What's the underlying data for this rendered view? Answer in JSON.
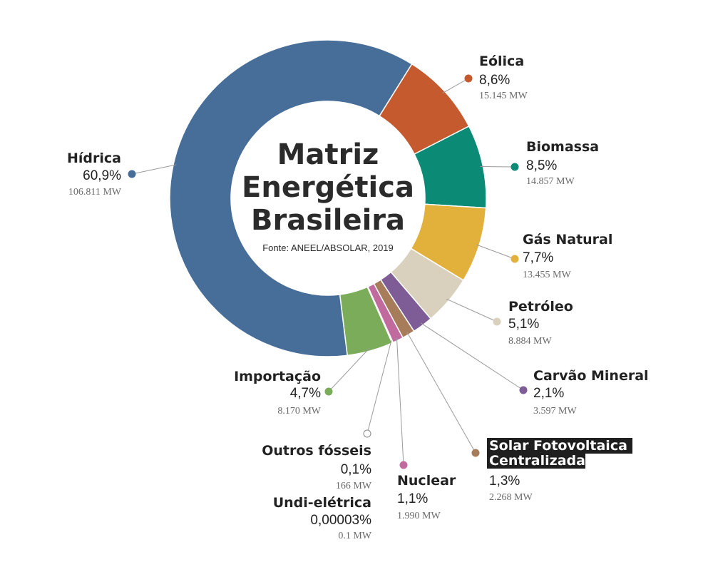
{
  "chart_data": {
    "type": "pie",
    "title": [
      "Matriz",
      "Energética",
      "Brasileira"
    ],
    "subtitle": "Fonte: ANEEL/ABSOLAR, 2019",
    "slices": [
      {
        "name": "Eólica",
        "value": 8.6,
        "percent_label": "8,6%",
        "mw_label": "15.145 MW",
        "color": "#c55a2e"
      },
      {
        "name": "Biomassa",
        "value": 8.5,
        "percent_label": "8,5%",
        "mw_label": "14.857 MW",
        "color": "#0b8a76"
      },
      {
        "name": "Gás Natural",
        "value": 7.7,
        "percent_label": "7,7%",
        "mw_label": "13.455 MW",
        "color": "#e2b13c"
      },
      {
        "name": "Petróleo",
        "value": 5.1,
        "percent_label": "5,1%",
        "mw_label": "8.884 MW",
        "color": "#d9d1be"
      },
      {
        "name": "Carvão Mineral",
        "value": 2.1,
        "percent_label": "2,1%",
        "mw_label": "3.597 MW",
        "color": "#7e5c96"
      },
      {
        "name": "Solar Fotovoltaica Centralizada",
        "name_lines": [
          "Solar Fotovoltaica",
          "Centralizada"
        ],
        "value": 1.3,
        "percent_label": "1,3%",
        "mw_label": "2.268 MW",
        "color": "#a77c5a",
        "highlighted": true
      },
      {
        "name": "Nuclear",
        "value": 1.1,
        "percent_label": "1,1%",
        "mw_label": "1.990 MW",
        "color": "#c16a9e"
      },
      {
        "name": "Outros fósseis",
        "value": 0.1,
        "percent_label": "0,1%",
        "mw_label": "166 MW",
        "color": "#ffffff"
      },
      {
        "name": "Undi-elétrica",
        "value": 3e-05,
        "percent_label": "0,00003%",
        "mw_label": "0.1 MW",
        "color": "#ffffff"
      },
      {
        "name": "Importação",
        "value": 4.7,
        "percent_label": "4,7%",
        "mw_label": "8.170 MW",
        "color": "#7aac5a"
      },
      {
        "name": "Hídrica",
        "value": 60.9,
        "percent_label": "60,9%",
        "mw_label": "106.811 MW",
        "color": "#476d99"
      }
    ]
  }
}
